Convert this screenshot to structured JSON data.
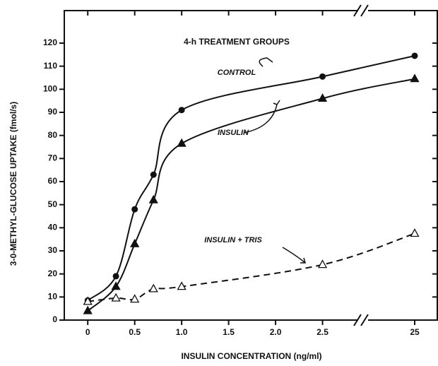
{
  "chart_data": {
    "type": "line",
    "title": "4-h TREATMENT GROUPS",
    "x_label": "INSULIN CONCENTRATION (ng/ml)",
    "y_label": "3-0-METHYL-GLUCOSE UPTAKE (fmol/s)",
    "x": [
      0,
      0.3,
      0.5,
      0.7,
      1.0,
      2.5,
      25
    ],
    "series": [
      {
        "name": "CONTROL",
        "color": "#111111",
        "marker": "circle",
        "dashed": false,
        "values": [
          8.5,
          19,
          48,
          63,
          91,
          105.5,
          114.5
        ]
      },
      {
        "name": "INSULIN",
        "color": "#111111",
        "marker": "triangle",
        "dashed": false,
        "values": [
          4,
          14.5,
          33,
          52,
          76.5,
          96,
          104.5
        ]
      },
      {
        "name": "INSULIN + TRIS",
        "color": "#111111",
        "marker": "triangle-open",
        "dashed": true,
        "values": [
          8,
          9.5,
          9,
          13.5,
          14.5,
          24,
          37.5
        ]
      }
    ],
    "xlim": [
      -0.25,
      25.5
    ],
    "x_break": [
      3,
      24
    ],
    "xticks": [
      0,
      0.5,
      {
        "value": 1,
        "label": "1.0"
      },
      1.5,
      {
        "value": 2,
        "label": "2.0"
      },
      2.5,
      25
    ],
    "ylim": [
      0,
      130
    ],
    "yticks": [
      0,
      10,
      20,
      30,
      40,
      50,
      60,
      70,
      80,
      90,
      100,
      110,
      120
    ],
    "grid": false
  }
}
